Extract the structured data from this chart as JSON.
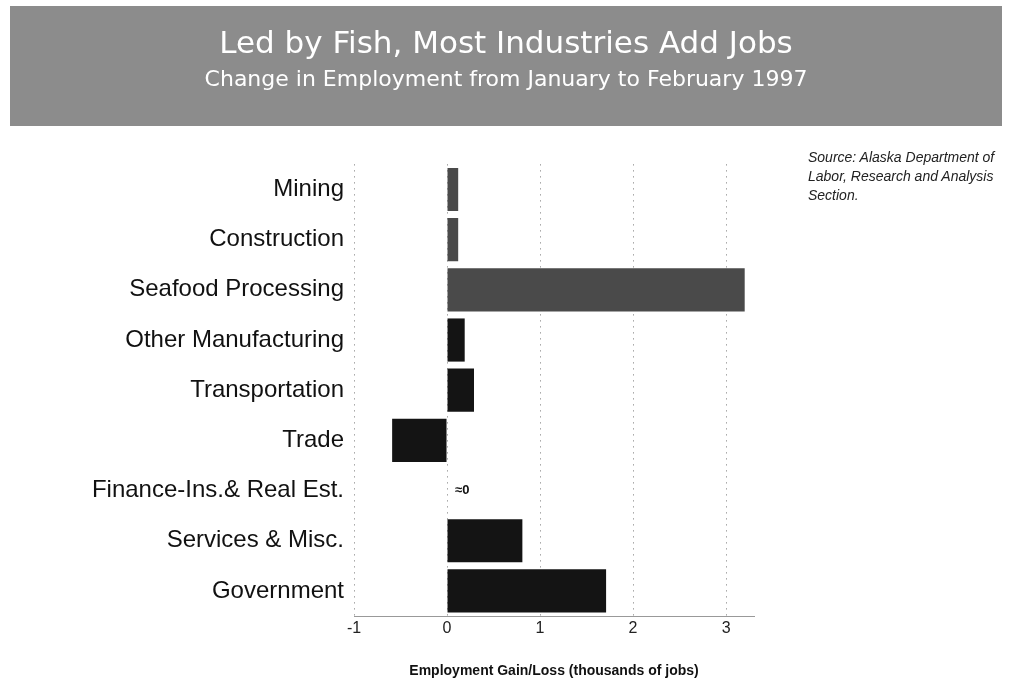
{
  "chart_data": {
    "type": "bar",
    "orientation": "horizontal",
    "title": "Led by Fish, Most Industries Add Jobs",
    "subtitle": "Change in Employment from January to February 1997",
    "xlabel": "Employment Gain/Loss (thousands of jobs)",
    "categories": [
      "Mining",
      "Construction",
      "Seafood Processing",
      "Other Manufacturing",
      "Transportation",
      "Trade",
      "Finance-Ins.& Real Est.",
      "Services & Misc.",
      "Government"
    ],
    "values": [
      0.12,
      0.12,
      3.2,
      0.19,
      0.29,
      -0.59,
      0,
      0.81,
      1.71
    ],
    "colors": [
      "#4a4a4a",
      "#4a4a4a",
      "#4a4a4a",
      "#141414",
      "#141414",
      "#141414",
      "#141414",
      "#141414",
      "#141414"
    ],
    "xlim": [
      -1,
      3.3
    ],
    "xticks": [
      -1,
      0,
      1,
      2,
      3
    ],
    "grid": "x",
    "line_style": "dotted",
    "annotations": [
      "Source: Alaska Department of Labor, Research and Analysis Section.",
      {
        "text": "≈0",
        "x": 0,
        "y": "Finance-Ins.& Real Est."
      }
    ]
  }
}
